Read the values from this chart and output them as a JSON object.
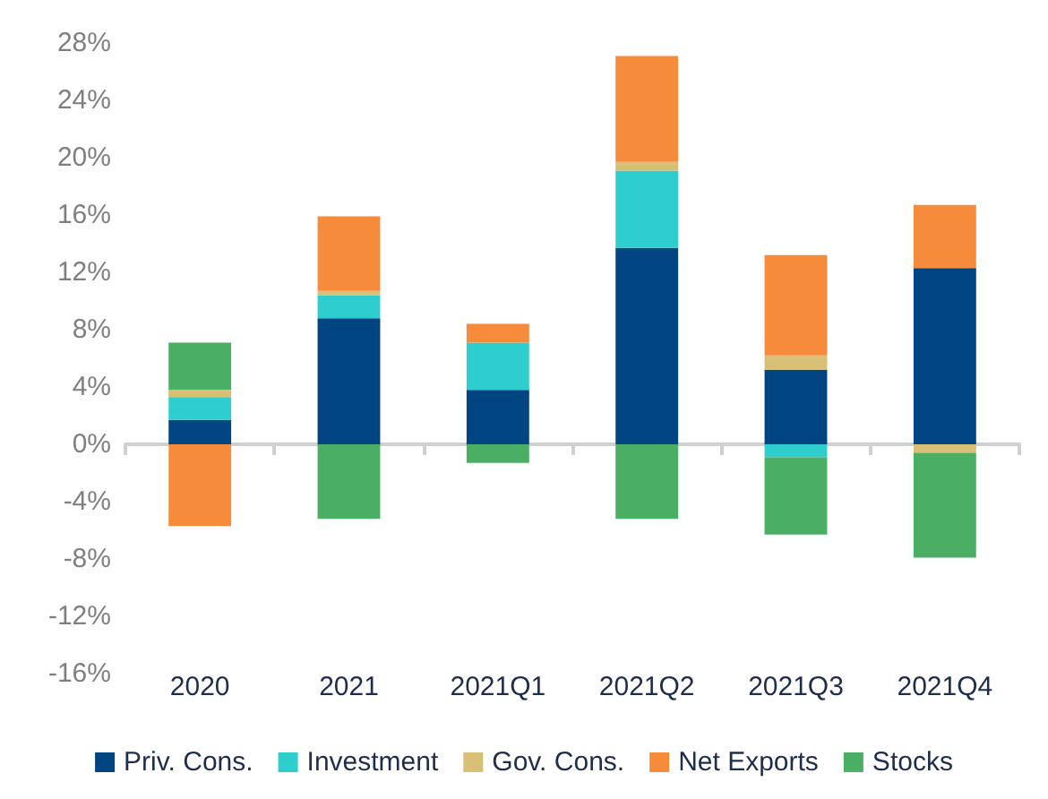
{
  "chart_data": {
    "type": "bar",
    "stacked": true,
    "categories": [
      "2020",
      "2021",
      "2021Q1",
      "2021Q2",
      "2021Q3",
      "2021Q4"
    ],
    "series": [
      {
        "name": "Priv. Cons.",
        "color": "#004481",
        "values": [
          1.7,
          8.8,
          3.8,
          13.7,
          5.2,
          12.3
        ]
      },
      {
        "name": "Investment",
        "color": "#2ecece",
        "values": [
          1.6,
          1.6,
          3.3,
          5.4,
          -0.9,
          0
        ]
      },
      {
        "name": "Gov. Cons.",
        "color": "#d7bf76",
        "values": [
          0.5,
          0.3,
          0,
          0.6,
          1.0,
          -0.6
        ]
      },
      {
        "name": "Net Exports",
        "color": "#f68b3b",
        "values": [
          -5.7,
          5.2,
          1.3,
          7.4,
          7.0,
          4.4
        ]
      },
      {
        "name": "Stocks",
        "color": "#4aae64",
        "values": [
          3.3,
          -5.2,
          -1.3,
          -5.2,
          -5.4,
          -7.3
        ]
      }
    ],
    "ylim": [
      -16,
      28
    ],
    "yticks": [
      {
        "value": -16,
        "label": "-16%"
      },
      {
        "value": -12,
        "label": "-12%"
      },
      {
        "value": -8,
        "label": "-8%"
      },
      {
        "value": -4,
        "label": "-4%"
      },
      {
        "value": 0,
        "label": "0%"
      },
      {
        "value": 4,
        "label": "4%"
      },
      {
        "value": 8,
        "label": "8%"
      },
      {
        "value": 12,
        "label": "12%"
      },
      {
        "value": 16,
        "label": "16%"
      },
      {
        "value": 20,
        "label": "20%"
      },
      {
        "value": 24,
        "label": "24%"
      },
      {
        "value": 28,
        "label": "28%"
      }
    ],
    "legend": "bottom"
  }
}
